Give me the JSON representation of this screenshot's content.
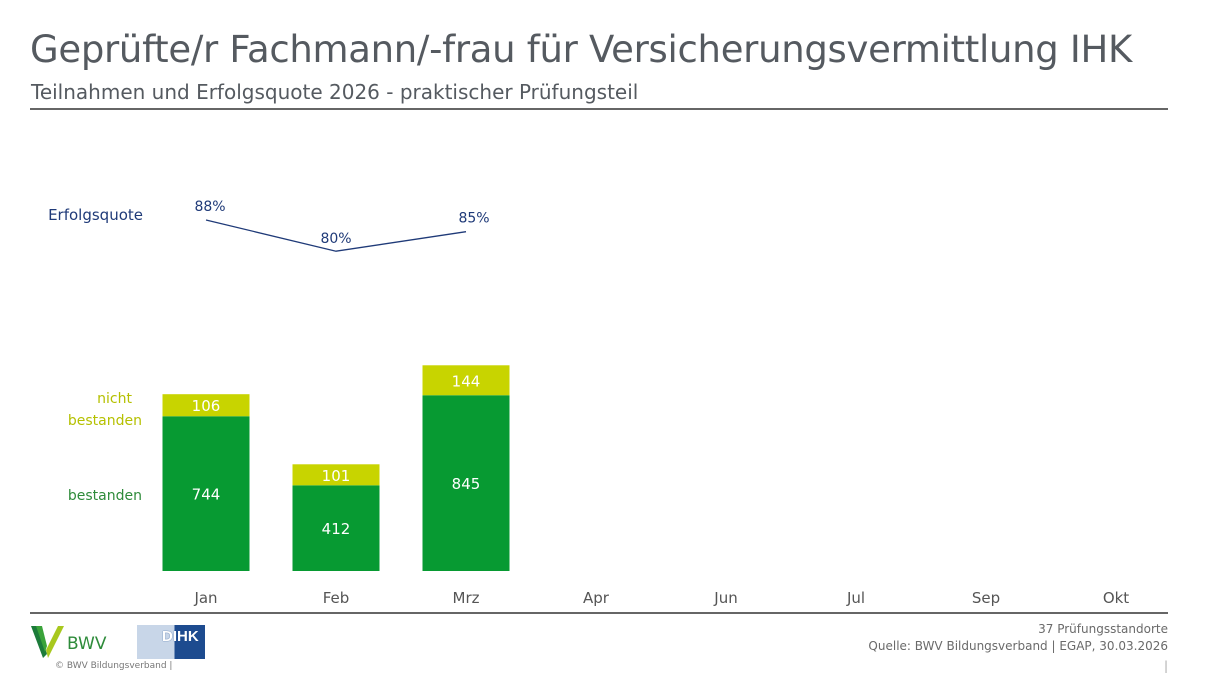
{
  "header": {
    "title": "Geprüfte/r Fachmann/-frau für Versicherungsvermittlung IHK",
    "subtitle": "Teilnahmen und Erfolgsquote 2026 - praktischer Prüfungsteil"
  },
  "chart_data": {
    "type": "bar",
    "stacked": true,
    "categories": [
      "Jan",
      "Feb",
      "Mrz",
      "Apr",
      "Jun",
      "Jul",
      "Sep",
      "Okt"
    ],
    "series": [
      {
        "name": "bestanden",
        "values": [
          744,
          412,
          845,
          null,
          null,
          null,
          null,
          null
        ],
        "color": "#079a32"
      },
      {
        "name": "nicht bestanden",
        "values": [
          106,
          101,
          144,
          null,
          null,
          null,
          null,
          null
        ],
        "color": "#c8d400"
      }
    ],
    "line": {
      "name": "Erfolgsquote",
      "values": [
        88,
        80,
        85,
        null,
        null,
        null,
        null,
        null
      ],
      "labels": [
        "88%",
        "80%",
        "85%"
      ],
      "color": "#1f3a78"
    },
    "legend": {
      "not_passed_line1": "nicht",
      "not_passed_line2": "bestanden",
      "passed": "bestanden",
      "rate": "Erfolgsquote"
    }
  },
  "footer": {
    "locations": "37 Prüfungsstandorte",
    "source": "Quelle: BWV Bildungsverband | EGAP, 30.03.2026",
    "page_sep": "|",
    "copyright": "©  BWV Bildungsverband  |",
    "bwv_logo": "BWV",
    "dihk_logo": "DIHK"
  }
}
